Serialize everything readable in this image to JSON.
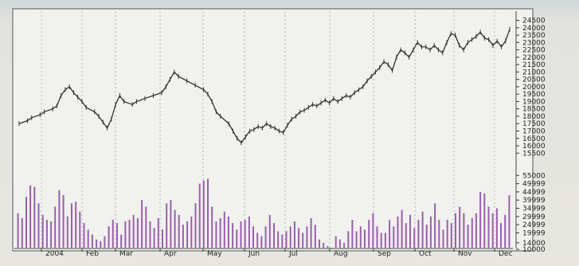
{
  "chart_data": [
    {
      "type": "line",
      "style": "bar-ohlc",
      "title": "",
      "xlabel": "",
      "ylabel": "",
      "x_axis": {
        "months": [
          "2004",
          "Feb",
          "Mar",
          "Apr",
          "May",
          "Jun",
          "Jul",
          "Aug",
          "Sep",
          "Oct",
          "Nov",
          "Dec"
        ]
      },
      "y_axis": {
        "range": [
          15300,
          24800
        ],
        "ticks": [
          "24500",
          "24000",
          "23500",
          "23000",
          "22500",
          "22000",
          "21500",
          "21000",
          "20500",
          "20000",
          "19500",
          "19000",
          "18500",
          "18000",
          "17500",
          "17000",
          "16500",
          "16000",
          "15500"
        ],
        "side": "right"
      },
      "grid": {
        "vertical": true,
        "horizontal": false
      },
      "series": [
        {
          "color": "#333333",
          "points": [
            [
              0,
              17500
            ],
            [
              2,
              17700
            ],
            [
              3,
              17900
            ],
            [
              5,
              18100
            ],
            [
              6,
              18300
            ],
            [
              8,
              18500
            ],
            [
              9,
              18700
            ],
            [
              10,
              19400
            ],
            [
              11,
              19800
            ],
            [
              12,
              20000
            ],
            [
              13,
              19600
            ],
            [
              14,
              19300
            ],
            [
              15,
              19000
            ],
            [
              16,
              18600
            ],
            [
              18,
              18300
            ],
            [
              19,
              18000
            ],
            [
              20,
              17600
            ],
            [
              21,
              17200
            ],
            [
              22,
              17800
            ],
            [
              23,
              18800
            ],
            [
              24,
              19400
            ],
            [
              25,
              19000
            ],
            [
              27,
              18800
            ],
            [
              28,
              19000
            ],
            [
              30,
              19200
            ],
            [
              32,
              19400
            ],
            [
              34,
              19600
            ],
            [
              35,
              20000
            ],
            [
              36,
              20500
            ],
            [
              37,
              21000
            ],
            [
              38,
              20700
            ],
            [
              40,
              20400
            ],
            [
              42,
              20100
            ],
            [
              44,
              19800
            ],
            [
              45,
              19500
            ],
            [
              46,
              19000
            ],
            [
              47,
              18300
            ],
            [
              48,
              18000
            ],
            [
              50,
              17500
            ],
            [
              51,
              17000
            ],
            [
              52,
              16500
            ],
            [
              53,
              16200
            ],
            [
              54,
              16600
            ],
            [
              55,
              17000
            ],
            [
              56,
              17100
            ],
            [
              57,
              17300
            ],
            [
              58,
              17200
            ],
            [
              59,
              17500
            ],
            [
              60,
              17300
            ],
            [
              61,
              17200
            ],
            [
              62,
              17000
            ],
            [
              63,
              16900
            ],
            [
              64,
              17400
            ],
            [
              65,
              17800
            ],
            [
              66,
              18000
            ],
            [
              67,
              18300
            ],
            [
              68,
              18400
            ],
            [
              69,
              18600
            ],
            [
              70,
              18800
            ],
            [
              71,
              18700
            ],
            [
              72,
              18900
            ],
            [
              73,
              19100
            ],
            [
              74,
              18900
            ],
            [
              75,
              19200
            ],
            [
              76,
              19000
            ],
            [
              77,
              19200
            ],
            [
              78,
              19400
            ],
            [
              79,
              19300
            ],
            [
              80,
              19600
            ],
            [
              81,
              19800
            ],
            [
              82,
              20000
            ],
            [
              83,
              20400
            ],
            [
              84,
              20700
            ],
            [
              85,
              21000
            ],
            [
              86,
              21300
            ],
            [
              87,
              21700
            ],
            [
              88,
              21500
            ],
            [
              89,
              21100
            ],
            [
              90,
              22000
            ],
            [
              91,
              22500
            ],
            [
              92,
              22300
            ],
            [
              93,
              22000
            ],
            [
              94,
              22500
            ],
            [
              95,
              23000
            ],
            [
              96,
              22700
            ],
            [
              97,
              22700
            ],
            [
              98,
              22500
            ],
            [
              99,
              22800
            ],
            [
              100,
              22500
            ],
            [
              101,
              22300
            ],
            [
              102,
              23000
            ],
            [
              103,
              23600
            ],
            [
              104,
              23500
            ],
            [
              105,
              22800
            ],
            [
              106,
              22500
            ],
            [
              107,
              23000
            ],
            [
              108,
              23200
            ],
            [
              109,
              23400
            ],
            [
              110,
              23700
            ],
            [
              111,
              23300
            ],
            [
              112,
              23200
            ],
            [
              113,
              22800
            ],
            [
              114,
              23100
            ],
            [
              115,
              22700
            ],
            [
              116,
              23100
            ],
            [
              117,
              23900
            ]
          ]
        }
      ]
    },
    {
      "type": "bar",
      "title": "",
      "y_axis": {
        "range": [
          11000,
          60000
        ],
        "ticks": [
          "55000",
          "49999",
          "44999",
          "39999",
          "34999",
          "29999",
          "24999",
          "19999",
          "14000",
          "10000"
        ],
        "side": "right"
      },
      "color": "#9a5fae",
      "values": [
        32000,
        29000,
        42000,
        49000,
        48000,
        38000,
        31000,
        28000,
        27000,
        36000,
        46000,
        43000,
        30000,
        38000,
        39000,
        33000,
        26000,
        22000,
        19000,
        16000,
        15000,
        18000,
        24000,
        28000,
        26000,
        19000,
        27000,
        28000,
        31000,
        29000,
        40000,
        36000,
        27000,
        23000,
        29000,
        22000,
        38000,
        40000,
        34000,
        31000,
        25000,
        27000,
        30000,
        38000,
        50000,
        52000,
        53000,
        36000,
        27000,
        29000,
        33000,
        30000,
        26000,
        22000,
        27000,
        28000,
        30000,
        24000,
        20000,
        18000,
        24000,
        31000,
        26000,
        21000,
        19000,
        21000,
        24000,
        27000,
        23000,
        20000,
        24000,
        29000,
        25000,
        16000,
        14000,
        12000,
        11000,
        18000,
        16000,
        14000,
        21000,
        28000,
        21000,
        24000,
        22000,
        28000,
        32000,
        24000,
        20000,
        20000,
        28000,
        24000,
        30000,
        34000,
        26000,
        31000,
        23000,
        28000,
        33000,
        25000,
        30000,
        38000,
        28000,
        22000,
        28000,
        26000,
        32000,
        36000,
        32000,
        25000,
        29000,
        32000,
        45000,
        44000,
        36000,
        32000,
        35000,
        26000,
        31000,
        43000
      ]
    }
  ]
}
